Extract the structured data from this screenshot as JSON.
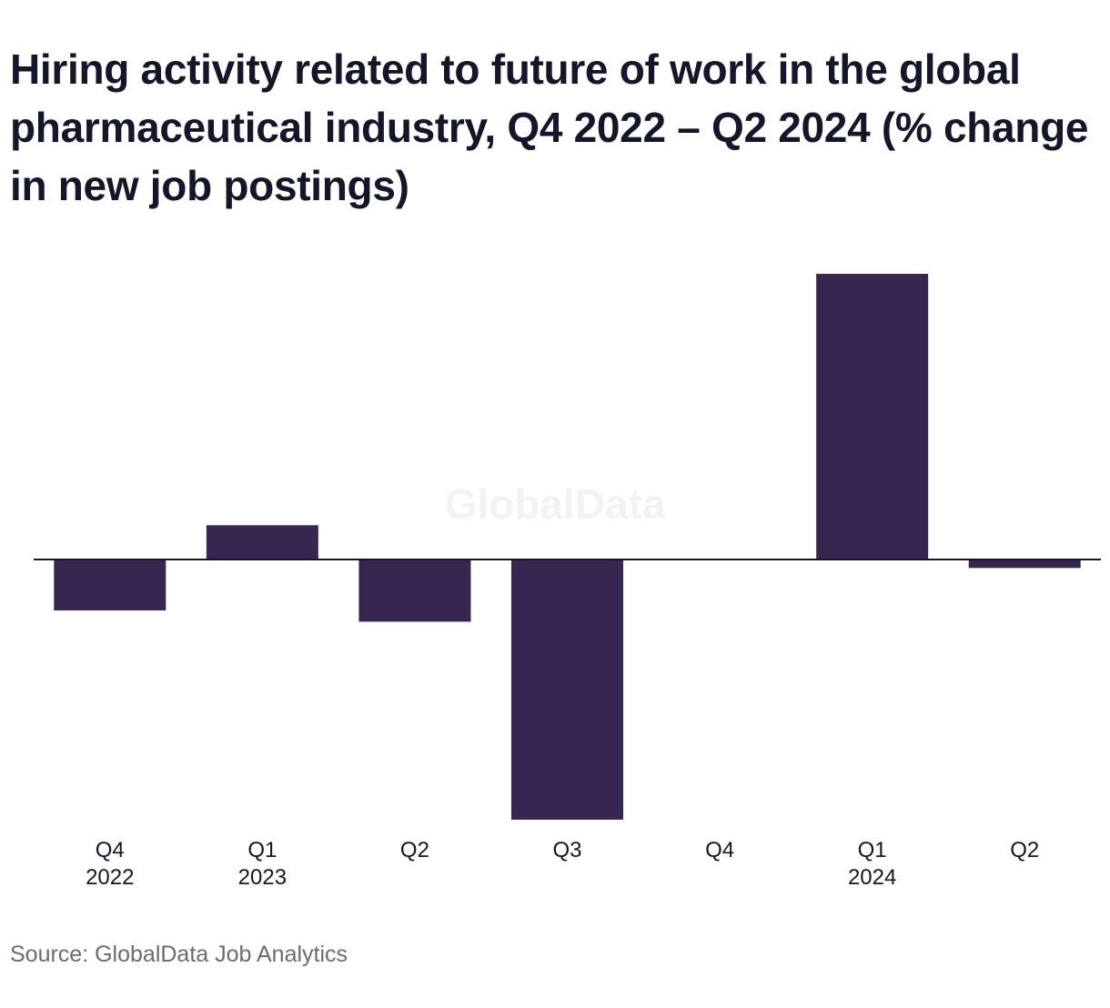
{
  "chart_data": {
    "type": "bar",
    "title": "Hiring activity related to future of work in the global pharmaceutical industry, Q4 2022 – Q2 2024 (% change in new job postings)",
    "categories": [
      [
        "Q4",
        "2022"
      ],
      [
        "Q1",
        "2023"
      ],
      [
        "Q2",
        ""
      ],
      [
        "Q3",
        ""
      ],
      [
        "Q4",
        ""
      ],
      [
        "Q1",
        "2024"
      ],
      [
        "Q2",
        ""
      ]
    ],
    "series": [
      {
        "values": [
          -9,
          6,
          -11,
          -46,
          0,
          50,
          -1.5
        ]
      }
    ],
    "ylim": [
      -46,
      50
    ],
    "grid": false,
    "y_axis_labels_shown": false,
    "zero_line": true,
    "bar_color": "#372650",
    "watermark": "GlobalData",
    "source": "Source: GlobalData Job Analytics"
  }
}
